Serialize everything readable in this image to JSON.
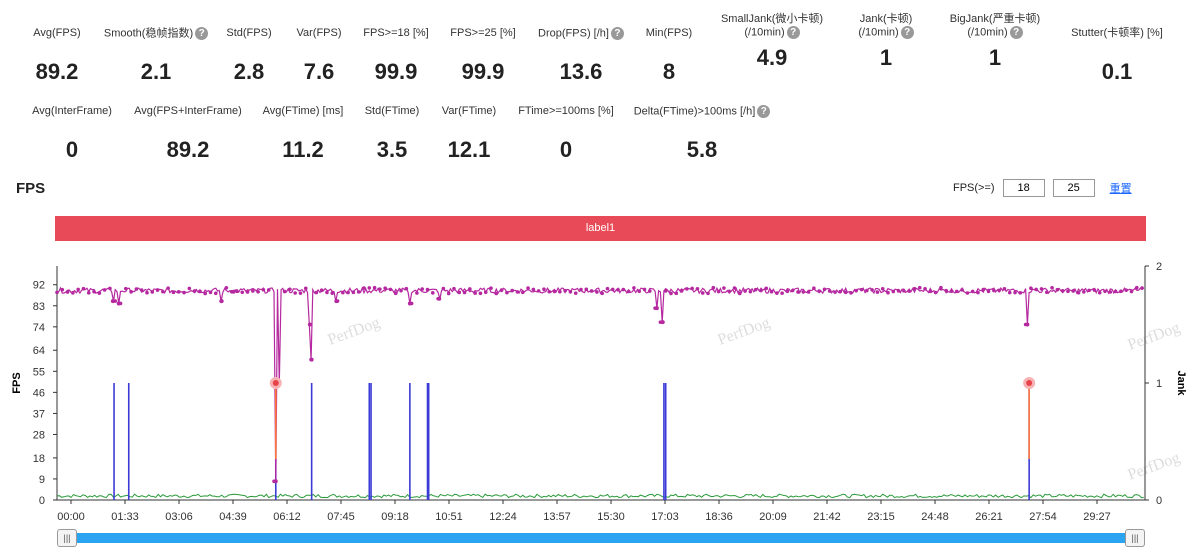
{
  "stats_row1": [
    {
      "label": "Avg(FPS)",
      "value": "89.2",
      "help": false
    },
    {
      "label": "Smooth(稳帧指数)",
      "value": "2.1",
      "help": true
    },
    {
      "label": "Std(FPS)",
      "value": "2.8",
      "help": false
    },
    {
      "label": "Var(FPS)",
      "value": "7.6",
      "help": false
    },
    {
      "label": "FPS>=18 [%]",
      "value": "99.9",
      "help": false
    },
    {
      "label": "FPS>=25 [%]",
      "value": "99.9",
      "help": false
    },
    {
      "label": "Drop(FPS) [/h]",
      "value": "13.6",
      "help": true
    },
    {
      "label": "Min(FPS)",
      "value": "8",
      "help": false
    },
    {
      "label": "SmallJank(微小卡顿)",
      "label2": "(/10min)",
      "value": "4.9",
      "help": true
    },
    {
      "label": "Jank(卡顿)",
      "label2": "(/10min)",
      "value": "1",
      "help": true
    },
    {
      "label": "BigJank(严重卡顿)",
      "label2": "(/10min)",
      "value": "1",
      "help": true
    },
    {
      "label": "Stutter(卡顿率) [%]",
      "value": "0.1",
      "help": false
    }
  ],
  "stats_row2": [
    {
      "label": "Avg(InterFrame)",
      "value": "0",
      "help": false
    },
    {
      "label": "Avg(FPS+InterFrame)",
      "value": "89.2",
      "help": false
    },
    {
      "label": "Avg(FTime) [ms]",
      "value": "11.2",
      "help": false
    },
    {
      "label": "Std(FTime)",
      "value": "3.5",
      "help": false
    },
    {
      "label": "Var(FTime)",
      "value": "12.1",
      "help": false
    },
    {
      "label": "FTime>=100ms [%]",
      "value": "0",
      "help": false
    },
    {
      "label": "Delta(FTime)>100ms [/h]",
      "value": "5.8",
      "help": true
    }
  ],
  "fps_section": {
    "title": "FPS",
    "threshold_label": "FPS(>=)",
    "threshold1": "18",
    "threshold2": "25",
    "reset_label": "重置",
    "label_bar": "label1"
  },
  "watermark": "PerfDog",
  "scroll_handle": "|||",
  "chart_data": {
    "type": "line",
    "ylabel": "FPS",
    "y2label": "Jank",
    "yticks": [
      0,
      9,
      18,
      28,
      37,
      46,
      55,
      64,
      74,
      83,
      92
    ],
    "y2ticks": [
      0,
      1,
      2
    ],
    "ylim": [
      0,
      100
    ],
    "y2lim": [
      0,
      2
    ],
    "xlabel": "",
    "xlim": [
      0,
      1850
    ],
    "xticks": [
      "00:00",
      "01:33",
      "03:06",
      "04:39",
      "06:12",
      "07:45",
      "09:18",
      "10:51",
      "12:24",
      "13:57",
      "15:30",
      "17:03",
      "18:36",
      "20:09",
      "21:42",
      "23:15",
      "24:48",
      "26:21",
      "27:54",
      "29:27"
    ],
    "colors": {
      "fps": "#b5289f",
      "jank": "#3b3ad6",
      "small": "#2a9a3a",
      "highlight": "#e8434a",
      "big": "#ff7a3a"
    },
    "fps_baseline": 89.5,
    "fps_dips": [
      [
        95,
        85
      ],
      [
        105,
        84
      ],
      [
        280,
        85
      ],
      [
        300,
        89
      ],
      [
        372,
        8
      ],
      [
        378,
        50
      ],
      [
        430,
        75
      ],
      [
        433,
        60
      ],
      [
        475,
        85
      ],
      [
        600,
        84
      ],
      [
        650,
        86
      ],
      [
        1020,
        82
      ],
      [
        1030,
        76
      ],
      [
        1650,
        75
      ]
    ],
    "jank_spikes_sec": [
      97,
      122,
      372,
      433,
      531,
      534,
      600,
      630,
      632,
      1032,
      1035,
      1653
    ],
    "jank_highlight_sec": [
      372,
      1653
    ]
  }
}
